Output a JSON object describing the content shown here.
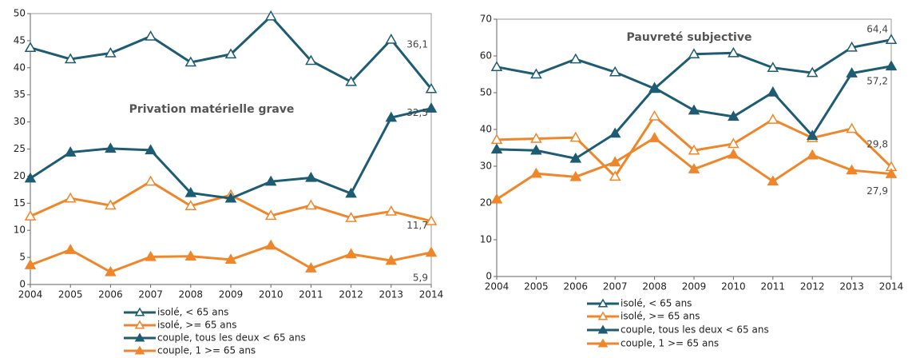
{
  "chart_data": [
    {
      "type": "line",
      "title": "Privation matérielle grave",
      "x": [
        2004,
        2005,
        2006,
        2007,
        2008,
        2009,
        2010,
        2011,
        2012,
        2013,
        2014
      ],
      "xlim": [
        2004,
        2014
      ],
      "xticks": [
        2004,
        2005,
        2006,
        2007,
        2008,
        2009,
        2010,
        2011,
        2012,
        2013,
        2014
      ],
      "ylim": [
        0,
        50
      ],
      "yticks": [
        0,
        5,
        10,
        15,
        20,
        25,
        30,
        35,
        40,
        45,
        50
      ],
      "grid": false,
      "series": [
        {
          "name": "isolé, < 65 ans",
          "color": "#1d5c72",
          "marker": "open",
          "values": [
            43.7,
            41.6,
            42.7,
            45.8,
            41.0,
            42.5,
            49.5,
            41.3,
            37.4,
            45.2,
            36.1
          ],
          "value_labels": [
            null,
            null,
            null,
            null,
            null,
            null,
            null,
            null,
            null,
            null,
            "36,1"
          ]
        },
        {
          "name": "isolé, >= 65 ans",
          "color": "#f0862a",
          "marker": "open",
          "values": [
            12.6,
            15.9,
            14.6,
            19.0,
            14.5,
            16.5,
            12.7,
            14.6,
            12.3,
            13.5,
            11.7
          ],
          "value_labels": [
            null,
            null,
            null,
            null,
            null,
            null,
            null,
            null,
            null,
            null,
            "11,7"
          ]
        },
        {
          "name": "couple, tous les deux < 65 ans",
          "color": "#1d5c72",
          "marker": "filled",
          "values": [
            19.6,
            24.4,
            25.1,
            24.8,
            16.9,
            15.9,
            19.0,
            19.7,
            16.8,
            30.8,
            32.5
          ],
          "value_labels": [
            null,
            null,
            null,
            null,
            null,
            null,
            null,
            null,
            null,
            null,
            "32,5"
          ]
        },
        {
          "name": "couple, 1 >= 65 ans",
          "color": "#f0862a",
          "marker": "filled",
          "values": [
            3.6,
            6.4,
            2.3,
            5.1,
            5.2,
            4.6,
            7.2,
            3.0,
            5.6,
            4.4,
            5.9
          ],
          "value_labels": [
            null,
            null,
            null,
            null,
            null,
            null,
            null,
            null,
            null,
            null,
            "5,9"
          ]
        }
      ]
    },
    {
      "type": "line",
      "title": "Pauvreté subjective",
      "x": [
        2004,
        2005,
        2006,
        2007,
        2008,
        2009,
        2010,
        2011,
        2012,
        2013,
        2014
      ],
      "xlim": [
        2004,
        2014
      ],
      "xticks": [
        2004,
        2005,
        2006,
        2007,
        2008,
        2009,
        2010,
        2011,
        2012,
        2013,
        2014
      ],
      "ylim": [
        0,
        70
      ],
      "yticks": [
        0,
        10,
        20,
        30,
        40,
        50,
        60,
        70
      ],
      "grid": false,
      "series": [
        {
          "name": "isolé, < 65 ans",
          "color": "#1d5c72",
          "marker": "open",
          "values": [
            57.0,
            55.0,
            59.1,
            55.6,
            51.1,
            60.5,
            60.8,
            56.8,
            55.4,
            62.3,
            64.4
          ],
          "value_labels": [
            null,
            null,
            null,
            null,
            null,
            null,
            null,
            null,
            null,
            null,
            "64,4"
          ]
        },
        {
          "name": "isolé, >= 65 ans",
          "color": "#f0862a",
          "marker": "open",
          "values": [
            37.2,
            37.5,
            37.8,
            27.2,
            43.6,
            34.3,
            36.1,
            42.7,
            37.7,
            40.2,
            29.8
          ],
          "value_labels": [
            null,
            null,
            null,
            null,
            null,
            null,
            null,
            null,
            null,
            null,
            "29,8"
          ]
        },
        {
          "name": "couple, tous les deux < 65 ans",
          "color": "#1d5c72",
          "marker": "filled",
          "values": [
            34.6,
            34.3,
            32.1,
            38.9,
            51.3,
            45.2,
            43.5,
            50.1,
            38.3,
            55.3,
            57.2
          ],
          "value_labels": [
            null,
            null,
            null,
            null,
            null,
            null,
            null,
            null,
            null,
            null,
            "57,2"
          ]
        },
        {
          "name": "couple, 1 >= 65 ans",
          "color": "#f0862a",
          "marker": "filled",
          "values": [
            21.0,
            28.0,
            27.1,
            31.1,
            37.7,
            29.2,
            33.2,
            25.9,
            33.0,
            28.9,
            27.9
          ],
          "value_labels": [
            null,
            null,
            null,
            null,
            null,
            null,
            null,
            null,
            null,
            null,
            "27,9"
          ]
        }
      ]
    }
  ]
}
